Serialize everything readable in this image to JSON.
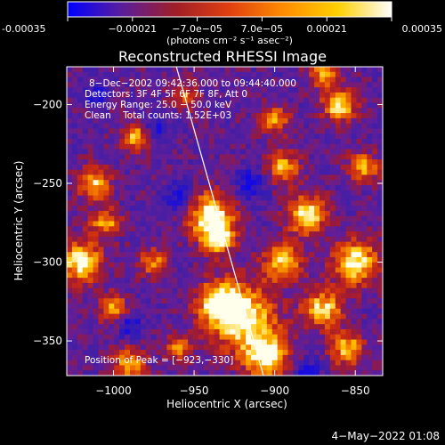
{
  "chart_data": {
    "type": "heatmap",
    "title": "Reconstructed RHESSI Image",
    "xlabel": "Heliocentric X (arcsec)",
    "ylabel": "Heliocentric Y (arcsec)",
    "xlim": [
      -1029,
      -833
    ],
    "ylim": [
      -372,
      -176
    ],
    "x_ticks": [
      -1000,
      -950,
      -900,
      -850
    ],
    "x_tick_labels": [
      "−1000",
      "−950",
      "−900",
      "−850"
    ],
    "y_ticks": [
      -200,
      -250,
      -300,
      -350
    ],
    "y_tick_labels": [
      "−200",
      "−250",
      "−300",
      "−350"
    ],
    "colorbar": {
      "min": -0.00035,
      "max": 0.00035,
      "ticks": [
        -0.00035,
        -0.00021,
        -7e-05,
        7e-05,
        0.00021,
        0.00035
      ],
      "tick_labels": [
        "-0.00035",
        "−0.00021",
        "−7.0e−05",
        "7.0e−05",
        "0.00021",
        "0.00035"
      ],
      "unit_label": "(photons cm⁻² s⁻¹ asec⁻²)",
      "colors": [
        "#0000ff",
        "#5a1e9c",
        "#a01e28",
        "#e04010",
        "#ff8c00",
        "#ffd000",
        "#ffffff"
      ]
    },
    "annotations": [
      "8−Dec−2002 09:42:36.000 to 09:44:40.000",
      "Detectors: 3F 4F 5F 6F 7F 8F, Att 0",
      "Energy Range: 25.0 − 50.0 keV",
      "Clean    Total counts: 1.52E+03",
      "Position of Peak = [−923,−330]"
    ],
    "peak": [
      -923,
      -330
    ],
    "limb_line": [
      [
        -961,
        -176
      ],
      [
        -907,
        -372
      ]
    ],
    "hotspots": [
      {
        "x": -940,
        "y": -270,
        "r": 14,
        "v": 1.0
      },
      {
        "x": -935,
        "y": -285,
        "r": 10,
        "v": 0.85
      },
      {
        "x": -920,
        "y": -335,
        "r": 20,
        "v": 1.0
      },
      {
        "x": -905,
        "y": -360,
        "r": 14,
        "v": 0.95
      },
      {
        "x": -935,
        "y": -325,
        "r": 12,
        "v": 0.9
      },
      {
        "x": -1020,
        "y": -300,
        "r": 13,
        "v": 0.95
      },
      {
        "x": -1012,
        "y": -250,
        "r": 10,
        "v": 0.8
      },
      {
        "x": -1005,
        "y": -275,
        "r": 9,
        "v": 0.7
      },
      {
        "x": -985,
        "y": -220,
        "r": 9,
        "v": 0.8
      },
      {
        "x": -1000,
        "y": -330,
        "r": 9,
        "v": 0.7
      },
      {
        "x": -990,
        "y": -365,
        "r": 10,
        "v": 0.7
      },
      {
        "x": -860,
        "y": -200,
        "r": 10,
        "v": 0.95
      },
      {
        "x": -850,
        "y": -300,
        "r": 14,
        "v": 0.95
      },
      {
        "x": -870,
        "y": -330,
        "r": 12,
        "v": 0.85
      },
      {
        "x": -880,
        "y": -270,
        "r": 12,
        "v": 0.9
      },
      {
        "x": -895,
        "y": -300,
        "r": 12,
        "v": 0.8
      },
      {
        "x": -855,
        "y": -355,
        "r": 10,
        "v": 0.8
      },
      {
        "x": -895,
        "y": -240,
        "r": 10,
        "v": 0.75
      },
      {
        "x": -870,
        "y": -180,
        "r": 9,
        "v": 0.7
      },
      {
        "x": -955,
        "y": -195,
        "r": 8,
        "v": 0.55
      },
      {
        "x": -975,
        "y": -300,
        "r": 9,
        "v": 0.6
      },
      {
        "x": -900,
        "y": -210,
        "r": 9,
        "v": 0.65
      },
      {
        "x": -845,
        "y": -240,
        "r": 9,
        "v": 0.75
      },
      {
        "x": -960,
        "y": -355,
        "r": 8,
        "v": 0.6
      }
    ],
    "coldspots": [
      {
        "x": -960,
        "y": -260,
        "r": 10
      },
      {
        "x": -975,
        "y": -215,
        "r": 9
      },
      {
        "x": -915,
        "y": -250,
        "r": 10
      },
      {
        "x": -880,
        "y": -370,
        "r": 8
      },
      {
        "x": -1010,
        "y": -195,
        "r": 7
      },
      {
        "x": -990,
        "y": -340,
        "r": 8
      }
    ],
    "grid": false
  },
  "footer": {
    "timestamp": "4−May−2022 01:08"
  }
}
